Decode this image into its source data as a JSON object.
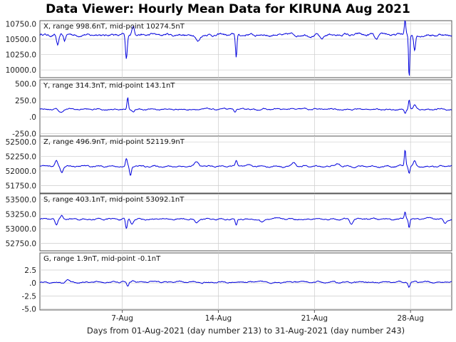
{
  "window_title": "Data Viewer:  Hourly Mean Data for KIRUNA Aug 2021",
  "colors": {
    "trace": "#0000dd",
    "grid": "#cccccc",
    "frame": "#555555",
    "background": "#ffffff"
  },
  "chart_data": {
    "type": "line",
    "title": "Data Viewer:  Hourly Mean Data for KIRUNA Aug 2021",
    "xlabel": "Days from 01-Aug-2021 (day number 213) to 31-Aug-2021 (day number 243)",
    "x_range_days": [
      1,
      31
    ],
    "x_ticks": [
      {
        "label": "7-Aug",
        "day": 7
      },
      {
        "label": "14-Aug",
        "day": 14
      },
      {
        "label": "21-Aug",
        "day": 21
      },
      {
        "label": "28-Aug",
        "day": 28
      }
    ],
    "grid": true,
    "panels": [
      {
        "name": "X",
        "label": "X, range 998.6nT, mid-point 10274.5nT",
        "ylim": [
          9875,
          10800
        ],
        "yticks": [
          {
            "v": 10750,
            "label": "10750.0"
          },
          {
            "v": 10500,
            "label": "10500.0"
          },
          {
            "v": 10250,
            "label": "10250.0"
          },
          {
            "v": 10000,
            "label": "10000.0"
          }
        ],
        "base": 10570,
        "noise": 22,
        "events": [
          {
            "day": 2.3,
            "delta": -180,
            "width": 0.2
          },
          {
            "day": 2.8,
            "delta": -90,
            "width": 0.15
          },
          {
            "day": 7.3,
            "delta": -420,
            "width": 0.15
          },
          {
            "day": 7.8,
            "delta": 160,
            "width": 0.2
          },
          {
            "day": 12.5,
            "delta": -100,
            "width": 0.3
          },
          {
            "day": 15.3,
            "delta": -380,
            "width": 0.12
          },
          {
            "day": 21.5,
            "delta": -80,
            "width": 0.3
          },
          {
            "day": 25.5,
            "delta": -90,
            "width": 0.25
          },
          {
            "day": 27.6,
            "delta": 230,
            "width": 0.12
          },
          {
            "day": 27.9,
            "delta": -700,
            "width": 0.1
          },
          {
            "day": 28.3,
            "delta": -260,
            "width": 0.15
          }
        ]
      },
      {
        "name": "Y",
        "label": "Y, range 314.3nT, mid-point 143.1nT",
        "ylim": [
          -300,
          560
        ],
        "yticks": [
          {
            "v": 500,
            "label": "500.0"
          },
          {
            "v": 250,
            "label": "250.0"
          },
          {
            "v": 0,
            "label": ".0"
          },
          {
            "v": -250,
            "label": "-250.0"
          }
        ],
        "base": 115,
        "noise": 12,
        "events": [
          {
            "day": 2.5,
            "delta": -50,
            "width": 0.3
          },
          {
            "day": 7.4,
            "delta": 180,
            "width": 0.12
          },
          {
            "day": 7.8,
            "delta": -40,
            "width": 0.2
          },
          {
            "day": 15.2,
            "delta": -45,
            "width": 0.2
          },
          {
            "day": 27.6,
            "delta": -60,
            "width": 0.12
          },
          {
            "day": 27.9,
            "delta": 150,
            "width": 0.12
          },
          {
            "day": 28.3,
            "delta": 60,
            "width": 0.2
          }
        ]
      },
      {
        "name": "Z",
        "label": "Z, range 496.9nT, mid-point 52119.9nT",
        "ylim": [
          51620,
          52600
        ],
        "yticks": [
          {
            "v": 52500,
            "label": "52500.0"
          },
          {
            "v": 52250,
            "label": "52250.0"
          },
          {
            "v": 52000,
            "label": "52000.0"
          },
          {
            "v": 51750,
            "label": "51750.0"
          }
        ],
        "base": 52080,
        "noise": 14,
        "events": [
          {
            "day": 2.2,
            "delta": 90,
            "width": 0.2
          },
          {
            "day": 2.6,
            "delta": -100,
            "width": 0.2
          },
          {
            "day": 7.3,
            "delta": 130,
            "width": 0.15
          },
          {
            "day": 7.6,
            "delta": -160,
            "width": 0.15
          },
          {
            "day": 12.4,
            "delta": 70,
            "width": 0.3
          },
          {
            "day": 15.3,
            "delta": 100,
            "width": 0.15
          },
          {
            "day": 19.5,
            "delta": 60,
            "width": 0.3
          },
          {
            "day": 22.7,
            "delta": 50,
            "width": 0.3
          },
          {
            "day": 27.6,
            "delta": 290,
            "width": 0.12
          },
          {
            "day": 27.9,
            "delta": -120,
            "width": 0.12
          },
          {
            "day": 28.3,
            "delta": 100,
            "width": 0.2
          }
        ]
      },
      {
        "name": "S",
        "label": "S, range 403.1nT, mid-point 53092.1nT",
        "ylim": [
          52620,
          53600
        ],
        "yticks": [
          {
            "v": 53500,
            "label": "53500.0"
          },
          {
            "v": 53250,
            "label": "53250.0"
          },
          {
            "v": 53000,
            "label": "53000.0"
          },
          {
            "v": 52750,
            "label": "52750.0"
          }
        ],
        "base": 53165,
        "noise": 14,
        "events": [
          {
            "day": 2.2,
            "delta": -100,
            "width": 0.2
          },
          {
            "day": 2.6,
            "delta": 60,
            "width": 0.2
          },
          {
            "day": 7.3,
            "delta": -180,
            "width": 0.15
          },
          {
            "day": 7.7,
            "delta": -80,
            "width": 0.2
          },
          {
            "day": 12.4,
            "delta": -70,
            "width": 0.3
          },
          {
            "day": 15.3,
            "delta": -110,
            "width": 0.15
          },
          {
            "day": 17.2,
            "delta": -60,
            "width": 0.3
          },
          {
            "day": 23.7,
            "delta": -90,
            "width": 0.25
          },
          {
            "day": 27.6,
            "delta": 120,
            "width": 0.12
          },
          {
            "day": 27.9,
            "delta": -150,
            "width": 0.12
          },
          {
            "day": 30.5,
            "delta": -80,
            "width": 0.25
          }
        ]
      },
      {
        "name": "G",
        "label": "G, range 1.9nT, mid-point -0.1nT",
        "ylim": [
          -5.2,
          5.8
        ],
        "yticks": [
          {
            "v": 2.5,
            "label": "2.5"
          },
          {
            "v": 0,
            "label": ".0"
          },
          {
            "v": -2.5,
            "label": "-2.5"
          },
          {
            "v": -5,
            "label": "-5.0"
          }
        ],
        "base": 0.15,
        "noise": 0.15,
        "events": [
          {
            "day": 3.0,
            "delta": 0.5,
            "width": 0.3
          },
          {
            "day": 7.4,
            "delta": -0.8,
            "width": 0.15
          },
          {
            "day": 7.8,
            "delta": 0.4,
            "width": 0.2
          },
          {
            "day": 27.9,
            "delta": -0.8,
            "width": 0.15
          }
        ]
      }
    ]
  }
}
